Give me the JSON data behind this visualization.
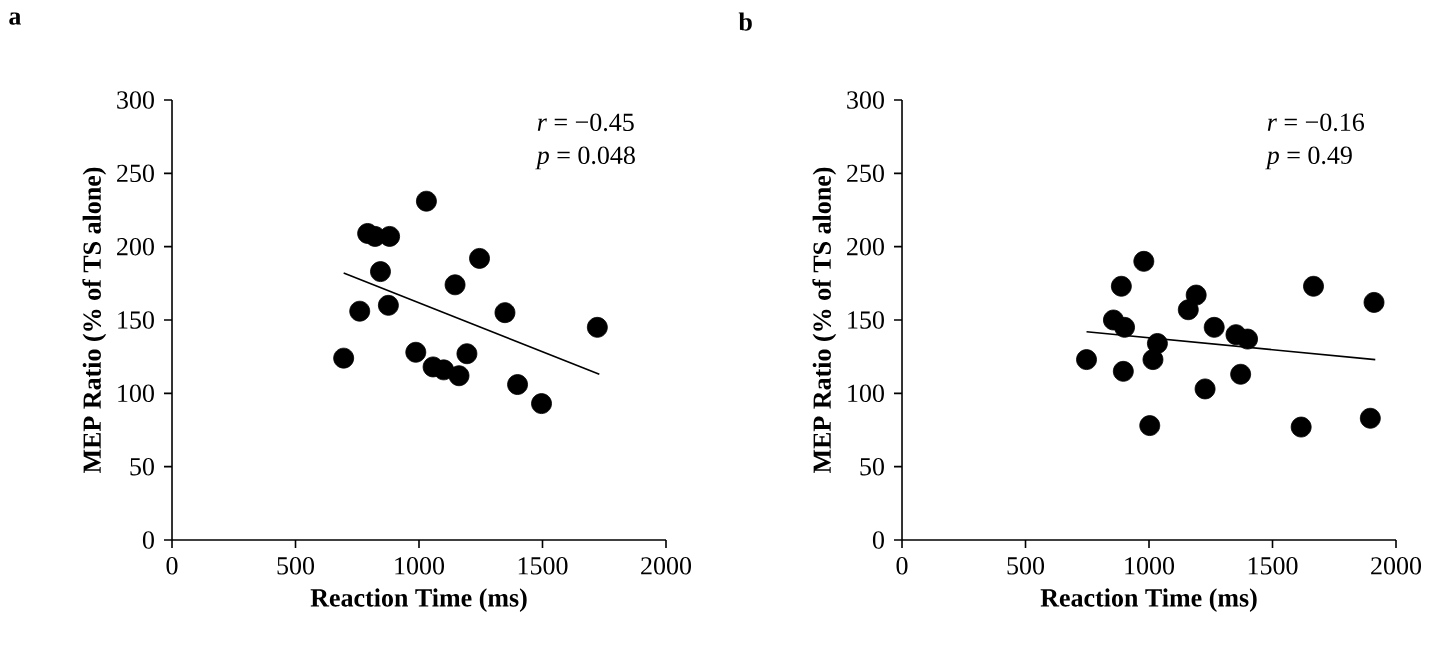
{
  "chart_data": [
    {
      "type": "scatter",
      "title": "a",
      "xlabel": "Reaction Time (ms)",
      "ylabel": "MEP Ratio (% of TS alone)",
      "xlim": [
        0,
        2000
      ],
      "ylim": [
        0,
        300
      ],
      "xticks": [
        0,
        500,
        1000,
        1500,
        2000
      ],
      "yticks": [
        0,
        50,
        100,
        150,
        200,
        250,
        300
      ],
      "annotations": [
        "*r* = −0.45",
        "*p* = 0.048"
      ],
      "series": [
        {
          "type": "scatter",
          "marker": "circle",
          "color": "#000000",
          "x": [
            695,
            760,
            792,
            822,
            844,
            881,
            876,
            1030,
            987,
            1057,
            1100,
            1162,
            1194,
            1146,
            1245,
            1348,
            1399,
            1496,
            1722
          ],
          "values": [
            124,
            156,
            209,
            207,
            183,
            207,
            160,
            231,
            128,
            118,
            116,
            112,
            127,
            174,
            192,
            155,
            106,
            93,
            145
          ]
        },
        {
          "type": "line",
          "color": "#000000",
          "line_style": "solid",
          "marker": "none",
          "x": [
            695,
            1730
          ],
          "values": [
            182,
            113
          ]
        }
      ]
    },
    {
      "type": "scatter",
      "title": "b",
      "xlabel": "Reaction Time (ms)",
      "ylabel": "MEP Ratio (% of TS alone)",
      "xlim": [
        0,
        2000
      ],
      "ylim": [
        0,
        300
      ],
      "xticks": [
        0,
        500,
        1000,
        1500,
        2000
      ],
      "yticks": [
        0,
        50,
        100,
        150,
        200,
        250,
        300
      ],
      "annotations": [
        "*r* = −0.16",
        "*p* = 0.49"
      ],
      "series": [
        {
          "type": "scatter",
          "marker": "circle",
          "color": "#000000",
          "x": [
            747,
            856,
            888,
            901,
            896,
            979,
            1003,
            1016,
            1034,
            1159,
            1191,
            1227,
            1264,
            1352,
            1399,
            1371,
            1666,
            1616,
            1896,
            1911
          ],
          "values": [
            123,
            150,
            173,
            145,
            115,
            190,
            78,
            123,
            134,
            157,
            167,
            103,
            145,
            140,
            137,
            113,
            173,
            77,
            83,
            162
          ]
        },
        {
          "type": "line",
          "color": "#000000",
          "line_style": "solid",
          "marker": "none",
          "x": [
            747,
            1916
          ],
          "values": [
            142,
            123
          ]
        }
      ]
    }
  ]
}
